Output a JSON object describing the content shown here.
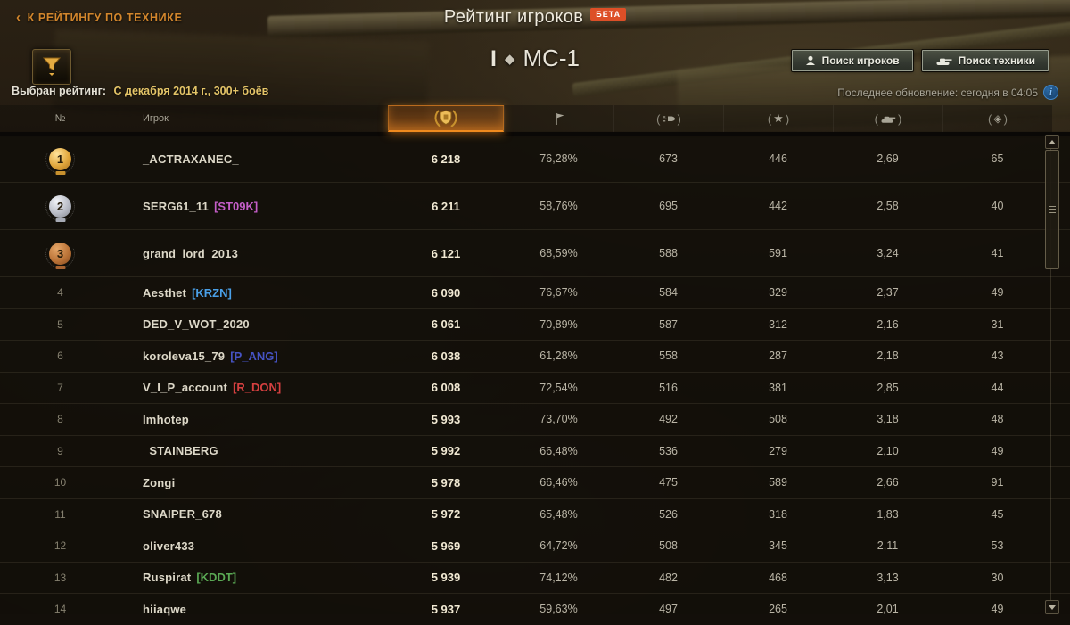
{
  "header": {
    "back_link": "К РЕЙТИНГУ ПО ТЕХНИКЕ",
    "title": "Рейтинг игроков",
    "beta_badge": "БЕТА",
    "vehicle_tier": "I",
    "vehicle_name": "МС-1",
    "search_players_button": "Поиск игроков",
    "search_vehicles_button": "Поиск техники",
    "filter_label": "Выбран рейтинг:",
    "filter_value": "С декабря 2014 г., 300+ боёв",
    "last_update": "Последнее обновление: сегодня в 04:05"
  },
  "icons": {
    "filter": "funnel-icon",
    "info": "info-icon",
    "columns": [
      "rating-wreath-icon",
      "win-flag-icon",
      "avg-damage-shell-icon",
      "avg-experience-star-icon",
      "avg-destroyed-tank-icon",
      "avg-spotted-icon"
    ]
  },
  "colors": {
    "accent_orange": "#f08a1e",
    "back_link_orange": "#d3862c",
    "gold_filter_text": "#e5c568",
    "beta_red": "#dd4f27",
    "medal_gold": "#e0a63c",
    "medal_silver": "#b9bcc6",
    "medal_bronze": "#bb7438"
  },
  "table": {
    "rank_header": "№",
    "player_header": "Игрок",
    "rows": [
      {
        "rank": "1",
        "medal": "gold",
        "name": "_ACTRAXANEC_",
        "clan": "",
        "clan_color": "",
        "values": [
          "6 218",
          "76,28%",
          "673",
          "446",
          "2,69",
          "65"
        ]
      },
      {
        "rank": "2",
        "medal": "silver",
        "name": "SERG61_11",
        "clan": "ST09K",
        "clan_color": "#c45ec8",
        "values": [
          "6 211",
          "58,76%",
          "695",
          "442",
          "2,58",
          "40"
        ]
      },
      {
        "rank": "3",
        "medal": "bronze",
        "name": "grand_lord_2013",
        "clan": "",
        "clan_color": "",
        "values": [
          "6 121",
          "68,59%",
          "588",
          "591",
          "3,24",
          "41"
        ]
      },
      {
        "rank": "4",
        "medal": "",
        "name": "Aesthet",
        "clan": "KRZN",
        "clan_color": "#4aa0e8",
        "values": [
          "6 090",
          "76,67%",
          "584",
          "329",
          "2,37",
          "49"
        ]
      },
      {
        "rank": "5",
        "medal": "",
        "name": "DED_V_WOT_2020",
        "clan": "",
        "clan_color": "",
        "values": [
          "6 061",
          "70,89%",
          "587",
          "312",
          "2,16",
          "31"
        ]
      },
      {
        "rank": "6",
        "medal": "",
        "name": "koroleva15_79",
        "clan": "P_ANG",
        "clan_color": "#4653c4",
        "values": [
          "6 038",
          "61,28%",
          "558",
          "287",
          "2,18",
          "43"
        ]
      },
      {
        "rank": "7",
        "medal": "",
        "name": "V_I_P_account",
        "clan": "R_DON",
        "clan_color": "#d64040",
        "values": [
          "6 008",
          "72,54%",
          "516",
          "381",
          "2,85",
          "44"
        ]
      },
      {
        "rank": "8",
        "medal": "",
        "name": "Imhotep",
        "clan": "",
        "clan_color": "",
        "values": [
          "5 993",
          "73,70%",
          "492",
          "508",
          "3,18",
          "48"
        ]
      },
      {
        "rank": "9",
        "medal": "",
        "name": "_STAINBERG_",
        "clan": "",
        "clan_color": "",
        "values": [
          "5 992",
          "66,48%",
          "536",
          "279",
          "2,10",
          "49"
        ]
      },
      {
        "rank": "10",
        "medal": "",
        "name": "Zongi",
        "clan": "",
        "clan_color": "",
        "values": [
          "5 978",
          "66,46%",
          "475",
          "589",
          "2,66",
          "91"
        ]
      },
      {
        "rank": "11",
        "medal": "",
        "name": "SNAIPER_678",
        "clan": "",
        "clan_color": "",
        "values": [
          "5 972",
          "65,48%",
          "526",
          "318",
          "1,83",
          "45"
        ]
      },
      {
        "rank": "12",
        "medal": "",
        "name": "oliver433",
        "clan": "",
        "clan_color": "",
        "values": [
          "5 969",
          "64,72%",
          "508",
          "345",
          "2,11",
          "53"
        ]
      },
      {
        "rank": "13",
        "medal": "",
        "name": "Ruspirat",
        "clan": "KDDT",
        "clan_color": "#5aa854",
        "values": [
          "5 939",
          "74,12%",
          "482",
          "468",
          "3,13",
          "30"
        ]
      },
      {
        "rank": "14",
        "medal": "",
        "name": "hiiaqwe",
        "clan": "",
        "clan_color": "",
        "values": [
          "5 937",
          "59,63%",
          "497",
          "265",
          "2,01",
          "49"
        ]
      }
    ]
  }
}
